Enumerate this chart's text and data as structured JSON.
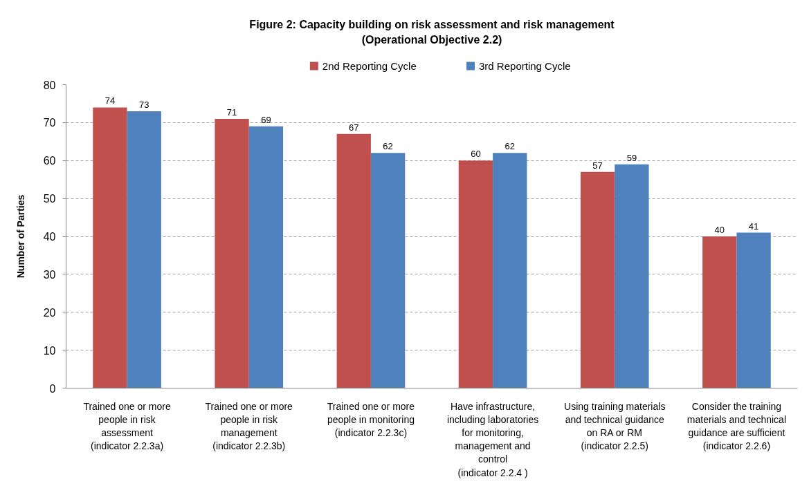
{
  "chart_data": {
    "type": "bar",
    "title": "Figure 2: Capacity building on risk assessment and risk management\n(Operational Objective 2.2)",
    "ylabel": "Number of Parties",
    "categories": [
      "Trained one or more\npeople in risk\nassessment\n(indicator 2.2.3a)",
      "Trained one or more\npeople in risk\nmanagement\n(indicator 2.2.3b)",
      "Trained one or more\npeople in monitoring\n(indicator 2.2.3c)",
      "Have infrastructure,\nincluding laboratories\nfor monitoring,\nmanagement and\ncontrol\n(indicator 2.2.4 )",
      "Using training materials\nand technical guidance\non RA or RM\n(indicator 2.2.5)",
      "Consider the training\nmaterials and technical\nguidance are sufficient\n(indicator 2.2.6)"
    ],
    "series": [
      {
        "name": "2nd Reporting Cycle",
        "color": "#c0504d",
        "values": [
          74,
          71,
          67,
          60,
          57,
          40
        ]
      },
      {
        "name": "3rd Reporting Cycle",
        "color": "#4f81bd",
        "values": [
          73,
          69,
          62,
          62,
          59,
          41
        ]
      }
    ],
    "ylim": [
      0,
      80
    ],
    "yticks": [
      0,
      10,
      20,
      30,
      40,
      50,
      60,
      70,
      80
    ],
    "grid": "y",
    "legend": "top",
    "data_labels": true
  }
}
